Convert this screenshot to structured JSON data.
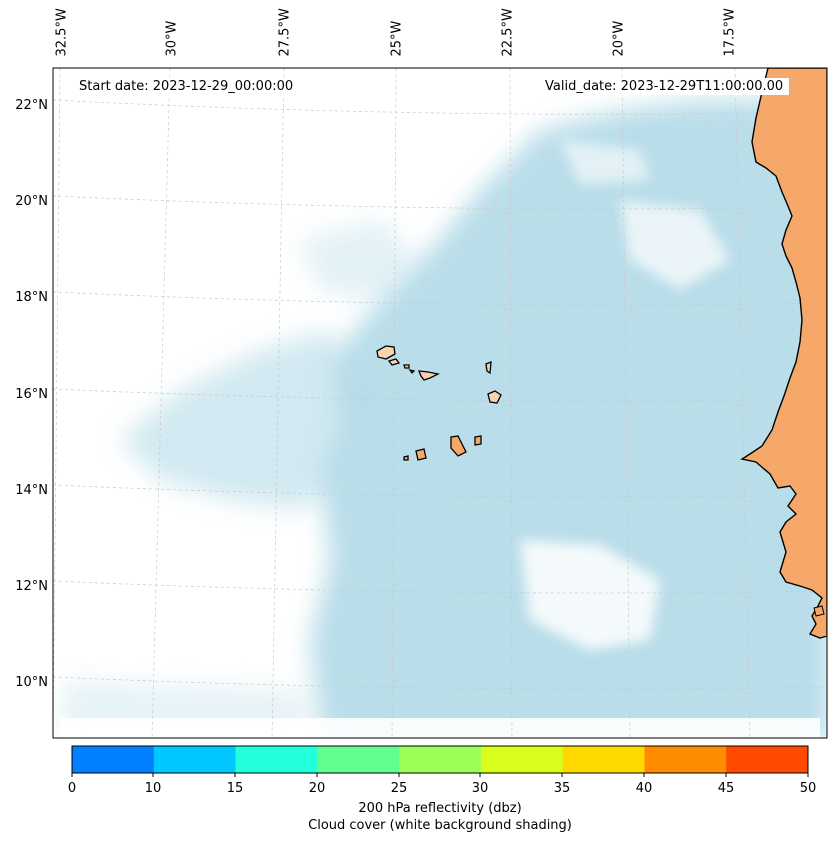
{
  "map": {
    "start_date_label": "Start date: 2023-12-29_00:00:00",
    "valid_date_label": "Valid_date: 2023-12-29T11:00:00.00",
    "lon_ticks": [
      "32.5°W",
      "30°W",
      "27.5°W",
      "25°W",
      "22.5°W",
      "20°W",
      "17.5°W"
    ],
    "lat_ticks": [
      "22°N",
      "20°N",
      "18°N",
      "16°N",
      "14°N",
      "12°N",
      "10°N"
    ],
    "colors": {
      "land": "#f5a86a",
      "land_light": "#f8d3b0",
      "cloud": "#add8e6",
      "ocean": "#ffffff",
      "coastline": "#000000",
      "gridline": "#c8c8c8"
    }
  },
  "colorbar": {
    "ticks": [
      "0",
      "10",
      "15",
      "20",
      "25",
      "30",
      "35",
      "40",
      "45",
      "50"
    ],
    "colors": [
      "#0080ff",
      "#00c8ff",
      "#22ffdd",
      "#60ff8e",
      "#9aff56",
      "#d8ff1c",
      "#ffd800",
      "#ff8c00",
      "#ff4a00"
    ],
    "label_line1": "200 hPa reflectivity (dbz)",
    "label_line2": "Cloud cover (white background shading)"
  }
}
